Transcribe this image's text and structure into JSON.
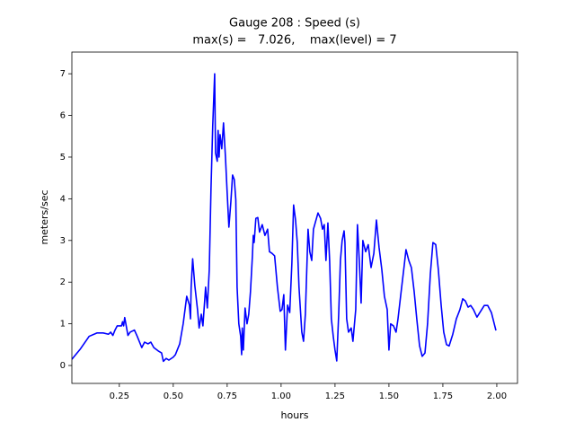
{
  "chart_data": {
    "type": "line",
    "title": "Gauge 208 : Speed (s)",
    "subtitle": "max(s) =   7.026,    max(level) = 7",
    "x_label": "hours",
    "y_label": "meters/sec",
    "color": "#0000ff",
    "xlim": [
      0.03,
      2.096
    ],
    "ylim": [
      -0.43,
      7.52
    ],
    "xticks": [
      0.25,
      {
        "value": 0.5,
        "label": "0.50"
      },
      0.75,
      {
        "value": 1,
        "label": "1.00"
      },
      1.25,
      {
        "value": 1.5,
        "label": "1.50"
      },
      1.75,
      {
        "value": 2,
        "label": "2.00"
      }
    ],
    "yticks": [
      0,
      1,
      2,
      3,
      4,
      5,
      6,
      7
    ],
    "x": [
      0.03,
      0.07,
      0.11,
      0.146,
      0.175,
      0.2,
      0.21,
      0.22,
      0.23,
      0.24,
      0.26,
      0.265,
      0.27,
      0.275,
      0.29,
      0.3,
      0.32,
      0.333,
      0.354,
      0.367,
      0.383,
      0.396,
      0.41,
      0.43,
      0.446,
      0.454,
      0.467,
      0.48,
      0.5,
      0.51,
      0.53,
      0.546,
      0.5625,
      0.575,
      0.58,
      0.583,
      0.59,
      0.6,
      0.6125,
      0.62,
      0.63,
      0.6375,
      0.65,
      0.658,
      0.667,
      0.675,
      0.683,
      0.692,
      0.696,
      0.704,
      0.708,
      0.7125,
      0.717,
      0.725,
      0.733,
      0.742,
      0.75,
      0.758,
      0.767,
      0.775,
      0.783,
      0.79,
      0.796,
      0.804,
      0.8125,
      0.817,
      0.82,
      0.825,
      0.833,
      0.842,
      0.85,
      0.858,
      0.867,
      0.871,
      0.875,
      0.883,
      0.892,
      0.9,
      0.9125,
      0.925,
      0.9375,
      0.946,
      0.958,
      0.97,
      0.983,
      0.996,
      1.004,
      1.0125,
      1.02,
      1.03,
      1.04,
      1.05,
      1.058,
      1.067,
      1.075,
      1.083,
      1.096,
      1.104,
      1.1125,
      1.125,
      1.133,
      1.142,
      1.15,
      1.158,
      1.171,
      1.183,
      1.192,
      1.2,
      1.208,
      1.217,
      1.225,
      1.233,
      1.242,
      1.25,
      1.258,
      1.267,
      1.275,
      1.283,
      1.292,
      1.296,
      1.304,
      1.3125,
      1.325,
      1.333,
      1.346,
      1.354,
      1.3625,
      1.371,
      1.379,
      1.392,
      1.404,
      1.417,
      1.43,
      1.442,
      1.454,
      1.467,
      1.479,
      1.492,
      1.5,
      1.508,
      1.521,
      1.533,
      1.542,
      1.554,
      1.571,
      1.579,
      1.592,
      1.604,
      1.617,
      1.629,
      1.642,
      1.654,
      1.667,
      1.679,
      1.692,
      1.704,
      1.717,
      1.729,
      1.742,
      1.754,
      1.767,
      1.779,
      1.796,
      1.8125,
      1.829,
      1.842,
      1.854,
      1.867,
      1.879,
      1.892,
      1.908,
      1.925,
      1.942,
      1.958,
      1.975,
      1.996
    ],
    "values": [
      0.15,
      0.4,
      0.7,
      0.78,
      0.78,
      0.75,
      0.8,
      0.72,
      0.85,
      0.95,
      0.95,
      1.05,
      0.95,
      1.15,
      0.72,
      0.8,
      0.85,
      0.7,
      0.43,
      0.56,
      0.52,
      0.56,
      0.43,
      0.35,
      0.3,
      0.1,
      0.17,
      0.13,
      0.2,
      0.26,
      0.52,
      1.0,
      1.66,
      1.45,
      1.12,
      1.88,
      2.56,
      1.92,
      1.34,
      0.9,
      1.23,
      0.95,
      1.88,
      1.38,
      2.3,
      4.24,
      5.75,
      7.0,
      5.1,
      4.9,
      5.64,
      5.0,
      5.54,
      5.2,
      5.82,
      5.0,
      4.14,
      3.32,
      3.92,
      4.57,
      4.46,
      3.98,
      1.88,
      1.0,
      0.7,
      0.26,
      0.9,
      0.37,
      1.38,
      1.0,
      1.23,
      1.77,
      2.63,
      3.12,
      2.95,
      3.53,
      3.55,
      3.2,
      3.38,
      3.12,
      3.27,
      2.73,
      2.69,
      2.63,
      1.88,
      1.3,
      1.34,
      1.7,
      0.37,
      1.45,
      1.27,
      2.46,
      3.85,
      3.49,
      2.95,
      1.88,
      0.8,
      0.58,
      1.23,
      3.27,
      2.73,
      2.52,
      3.27,
      3.42,
      3.66,
      3.53,
      3.27,
      3.38,
      2.52,
      3.42,
      2.52,
      1.12,
      0.69,
      0.37,
      0.11,
      1.23,
      2.52,
      3.0,
      3.23,
      2.95,
      1.12,
      0.8,
      0.9,
      0.58,
      1.34,
      3.38,
      2.52,
      1.5,
      3.0,
      2.73,
      2.9,
      2.35,
      2.69,
      3.49,
      2.84,
      2.3,
      1.66,
      1.34,
      0.37,
      1.0,
      0.95,
      0.8,
      1.12,
      1.66,
      2.41,
      2.78,
      2.52,
      2.35,
      1.77,
      1.12,
      0.47,
      0.22,
      0.3,
      1.0,
      2.2,
      2.95,
      2.9,
      2.3,
      1.45,
      0.8,
      0.5,
      0.47,
      0.75,
      1.12,
      1.34,
      1.6,
      1.55,
      1.4,
      1.44,
      1.34,
      1.16,
      1.3,
      1.44,
      1.44,
      1.27,
      0.84
    ]
  }
}
